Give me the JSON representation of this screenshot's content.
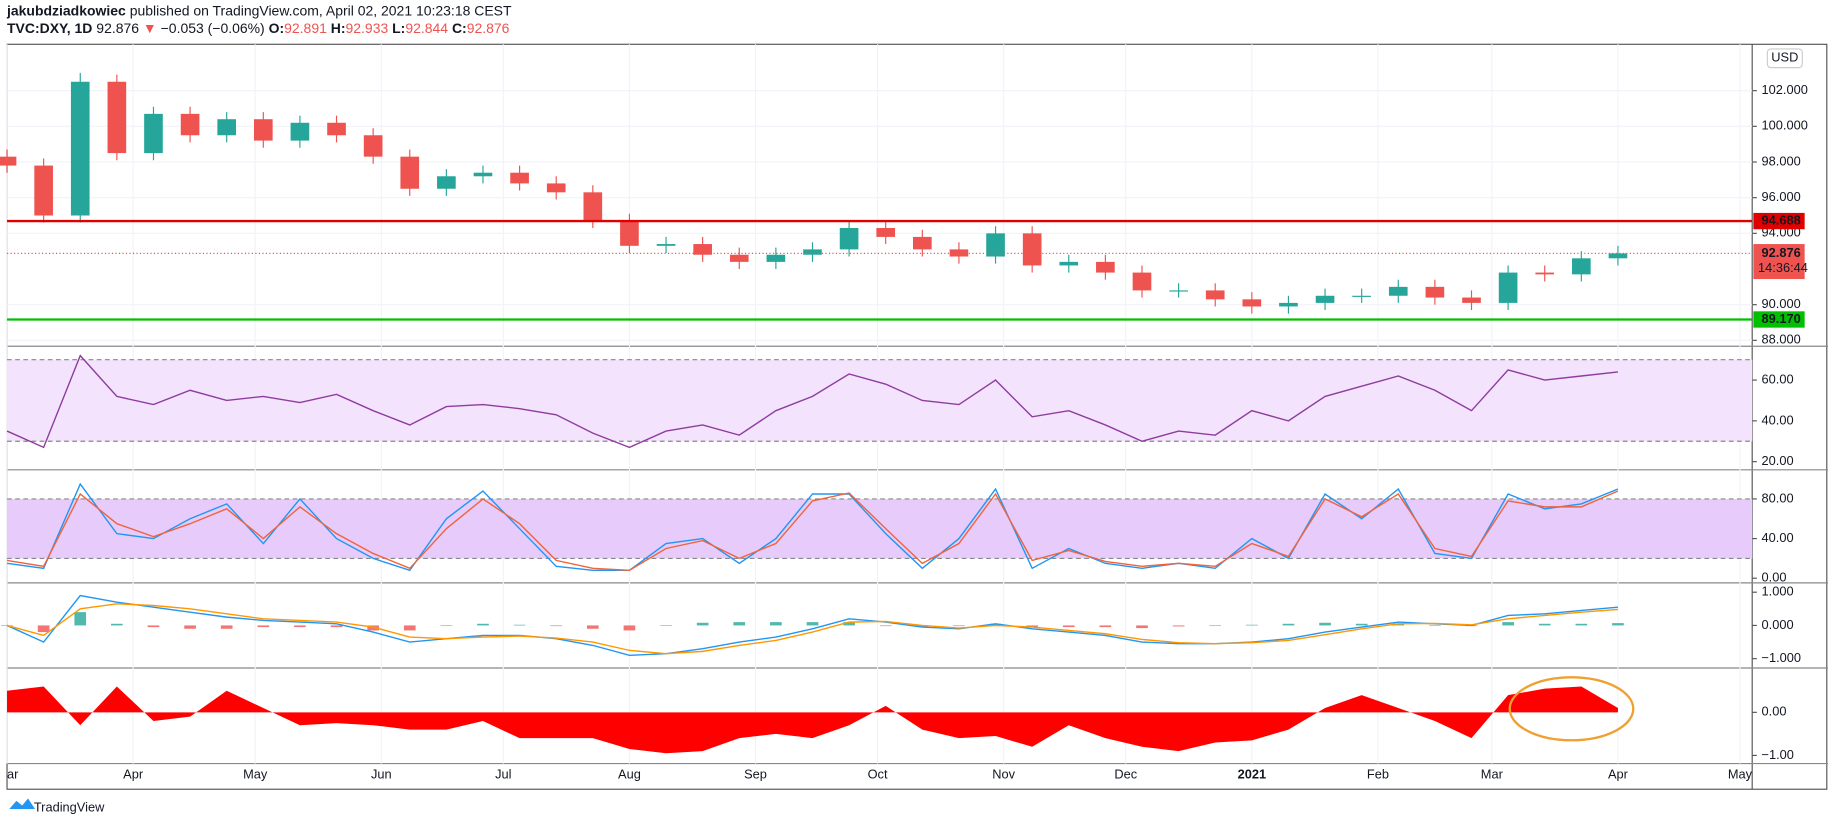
{
  "header": {
    "author": "jakubdziadkowiec",
    "published": "published on TradingView.com, April 02, 2021 10:23:18 CEST",
    "symbol": "TVC:DXY, 1D",
    "last": 92.876,
    "arrow": "▼",
    "change": "−0.053 (−0.06%)",
    "ohlc": [
      {
        "key": "O:",
        "value": 92.891
      },
      {
        "key": "H:",
        "value": 92.933
      },
      {
        "key": "L:",
        "value": 92.844
      },
      {
        "key": "C:",
        "value": 92.876
      }
    ],
    "currency": "USD"
  },
  "footer": {
    "logo": "TradingView"
  },
  "chart_data": {
    "type": "candlestick",
    "grid": true,
    "up_color": "#26a69a",
    "down_color": "#ef5350",
    "x": [
      0,
      9,
      18,
      27,
      36,
      45,
      54,
      63,
      72,
      81,
      90,
      99,
      108,
      117,
      126,
      135,
      144,
      153,
      162,
      171,
      180,
      189,
      198,
      207,
      216,
      225,
      234,
      243,
      252,
      261,
      270,
      279,
      288,
      297,
      306,
      315,
      324,
      333,
      342,
      351,
      360,
      369,
      378,
      387,
      396
    ],
    "xlim": [
      0,
      429
    ],
    "xticks": [
      {
        "value": 0,
        "label": "ar"
      },
      {
        "value": 31,
        "label": "Apr"
      },
      {
        "value": 61,
        "label": "May"
      },
      {
        "value": 92,
        "label": "Jun"
      },
      {
        "value": 122,
        "label": "Jul"
      },
      {
        "value": 153,
        "label": "Aug"
      },
      {
        "value": 184,
        "label": "Sep"
      },
      {
        "value": 214,
        "label": "Oct"
      },
      {
        "value": 245,
        "label": "Nov"
      },
      {
        "value": 275,
        "label": "Dec"
      },
      {
        "value": 306,
        "label": "2021"
      },
      {
        "value": 337,
        "label": "Feb"
      },
      {
        "value": 365,
        "label": "Mar"
      },
      {
        "value": 396,
        "label": "Apr"
      },
      {
        "value": 426,
        "label": "May"
      }
    ],
    "open": [
      98.3,
      97.8,
      95.0,
      102.5,
      98.5,
      100.7,
      99.5,
      100.4,
      99.2,
      100.2,
      99.5,
      98.3,
      96.5,
      97.2,
      97.4,
      96.8,
      96.3,
      94.7,
      93.3,
      93.4,
      92.8,
      92.4,
      92.8,
      93.1,
      94.3,
      93.8,
      93.1,
      92.7,
      94.0,
      92.2,
      92.4,
      91.8,
      90.8,
      90.8,
      90.3,
      89.9,
      90.1,
      90.5,
      90.5,
      91.0,
      90.4,
      90.1,
      91.8,
      91.7,
      92.6
    ],
    "high": [
      98.7,
      98.2,
      103.0,
      102.9,
      101.1,
      101.1,
      100.8,
      100.8,
      100.6,
      100.6,
      99.9,
      98.7,
      97.6,
      97.8,
      97.8,
      97.2,
      96.7,
      95.1,
      93.8,
      93.8,
      93.2,
      93.2,
      93.5,
      94.7,
      94.7,
      94.2,
      93.5,
      94.4,
      94.4,
      92.8,
      92.8,
      92.2,
      91.2,
      91.2,
      90.7,
      90.5,
      90.9,
      90.9,
      91.4,
      91.4,
      90.8,
      92.2,
      92.2,
      93.0,
      93.3
    ],
    "low": [
      97.4,
      94.6,
      94.6,
      98.1,
      98.1,
      99.1,
      99.1,
      98.8,
      98.8,
      99.1,
      97.9,
      96.1,
      96.1,
      96.8,
      96.4,
      95.9,
      94.3,
      92.9,
      92.9,
      92.4,
      92.0,
      92.0,
      92.4,
      92.7,
      93.4,
      92.7,
      92.3,
      92.3,
      91.8,
      91.8,
      91.4,
      90.4,
      90.4,
      89.9,
      89.5,
      89.5,
      89.7,
      90.1,
      90.1,
      90.0,
      89.7,
      89.7,
      91.3,
      91.3,
      92.2
    ],
    "close": [
      97.8,
      95.0,
      102.5,
      98.5,
      100.7,
      99.5,
      100.4,
      99.2,
      100.2,
      99.5,
      98.3,
      96.5,
      97.2,
      97.4,
      96.8,
      96.3,
      94.7,
      93.3,
      93.4,
      92.8,
      92.4,
      92.8,
      93.1,
      94.3,
      93.8,
      93.1,
      92.7,
      94.0,
      92.2,
      92.4,
      91.8,
      90.8,
      90.8,
      90.3,
      89.9,
      90.1,
      90.5,
      90.5,
      91.0,
      90.4,
      90.1,
      91.8,
      91.7,
      92.6,
      92.876
    ],
    "ylim": [
      87.67,
      104.6
    ],
    "yticks": [
      {
        "value": 88,
        "label": "88.000"
      },
      {
        "value": 90,
        "label": "90.000"
      },
      {
        "value": 94,
        "label": "94.000"
      },
      {
        "value": 96,
        "label": "96.000"
      },
      {
        "value": 98,
        "label": "98.000"
      },
      {
        "value": 100,
        "label": "100.000"
      },
      {
        "value": 102,
        "label": "102.000"
      }
    ],
    "levels": [
      {
        "value": 94.688,
        "color": "#e00000"
      },
      {
        "value": 89.17,
        "label": "89.170",
        "color": "#00c000"
      }
    ],
    "last_price": {
      "value": 92.876,
      "countdown": "14:36:44",
      "color": "#ef5350"
    },
    "panels": [
      {
        "type": "line",
        "ylim": [
          16,
          76.6
        ],
        "yticks": [
          {
            "value": 20,
            "label": "20.00"
          },
          {
            "value": 40,
            "label": "40.00"
          },
          {
            "value": 60,
            "label": "60.00"
          }
        ],
        "band": [
          30,
          70
        ],
        "band_color": "#f3e3fd",
        "series": [
          {
            "color": "#8e3c9e",
            "values": [
              35,
              27,
              72,
              52,
              48,
              55,
              50,
              52,
              49,
              53,
              45,
              38,
              47,
              48,
              46,
              43,
              34,
              27,
              35,
              38,
              33,
              45,
              52,
              63,
              58,
              50,
              48,
              60,
              42,
              45,
              38,
              30,
              35,
              33,
              45,
              40,
              52,
              57,
              62,
              55,
              45,
              65,
              60,
              62,
              64
            ]
          }
        ]
      },
      {
        "type": "line",
        "ylim": [
          -4.7,
          109.4
        ],
        "yticks": [
          {
            "value": 0,
            "label": "0.00"
          },
          {
            "value": 40,
            "label": "40.00"
          },
          {
            "value": 80,
            "label": "80.00"
          }
        ],
        "band": [
          20,
          80
        ],
        "band_color": "#e6cbfb",
        "series": [
          {
            "color": "#2196f3",
            "values": [
              15,
              10,
              95,
              45,
              40,
              60,
              75,
              35,
              80,
              40,
              20,
              8,
              60,
              88,
              50,
              12,
              8,
              8,
              35,
              40,
              15,
              40,
              85,
              85,
              45,
              10,
              40,
              90,
              10,
              30,
              15,
              10,
              15,
              10,
              40,
              20,
              85,
              60,
              90,
              25,
              20,
              85,
              70,
              75,
              90
            ]
          },
          {
            "color": "#f0643c",
            "values": [
              18,
              12,
              85,
              55,
              42,
              55,
              70,
              40,
              72,
              45,
              25,
              10,
              50,
              80,
              55,
              18,
              10,
              8,
              30,
              38,
              20,
              35,
              78,
              86,
              50,
              15,
              35,
              85,
              18,
              28,
              17,
              12,
              15,
              12,
              35,
              22,
              80,
              62,
              85,
              30,
              22,
              78,
              72,
              72,
              88
            ]
          }
        ]
      },
      {
        "type": "bar-line",
        "ylim": [
          -1.28,
          1.28
        ],
        "yticks": [
          {
            "value": -1,
            "label": "−1.000"
          },
          {
            "value": 0,
            "label": "0.000"
          },
          {
            "value": 1,
            "label": "1.000"
          }
        ],
        "bars": {
          "up_color": "#26a69a",
          "down_color": "#ef5350",
          "values": [
            0,
            -0.2,
            0.4,
            0.05,
            -0.05,
            -0.1,
            -0.1,
            -0.05,
            -0.05,
            -0.05,
            -0.15,
            -0.15,
            0,
            0.05,
            0.02,
            -0.02,
            -0.1,
            -0.15,
            0,
            0.08,
            0.1,
            0.1,
            0.1,
            0.1,
            -0.02,
            -0.05,
            -0.02,
            0.05,
            -0.05,
            -0.05,
            -0.05,
            -0.08,
            -0.03,
            0,
            0.02,
            0.05,
            0.08,
            0.05,
            0.05,
            -0.01,
            -0.02,
            0.1,
            0.05,
            0.05,
            0.07
          ]
        },
        "series": [
          {
            "color": "#2196f3",
            "values": [
              0,
              -0.5,
              0.9,
              0.7,
              0.55,
              0.4,
              0.25,
              0.15,
              0.1,
              0.05,
              -0.2,
              -0.5,
              -0.4,
              -0.3,
              -0.3,
              -0.4,
              -0.6,
              -0.9,
              -0.85,
              -0.7,
              -0.5,
              -0.35,
              -0.1,
              0.2,
              0.1,
              -0.05,
              -0.1,
              0.05,
              -0.1,
              -0.2,
              -0.3,
              -0.5,
              -0.55,
              -0.55,
              -0.5,
              -0.4,
              -0.2,
              -0.05,
              0.1,
              0.05,
              0,
              0.3,
              0.35,
              0.45,
              0.55
            ]
          },
          {
            "color": "#ff9800",
            "values": [
              0,
              -0.3,
              0.5,
              0.65,
              0.6,
              0.5,
              0.35,
              0.2,
              0.15,
              0.1,
              -0.05,
              -0.35,
              -0.4,
              -0.35,
              -0.32,
              -0.38,
              -0.5,
              -0.75,
              -0.85,
              -0.78,
              -0.6,
              -0.45,
              -0.2,
              0.1,
              0.12,
              0,
              -0.08,
              0,
              -0.05,
              -0.15,
              -0.25,
              -0.42,
              -0.52,
              -0.55,
              -0.52,
              -0.45,
              -0.28,
              -0.1,
              0.05,
              0.06,
              0.02,
              0.2,
              0.3,
              0.4,
              0.48
            ]
          }
        ]
      },
      {
        "type": "area",
        "ylim": [
          -1.19,
          1.03
        ],
        "color": "#ff0000",
        "yticks": [
          {
            "value": -1,
            "label": "−1.00"
          },
          {
            "value": 0,
            "label": "0.00"
          }
        ],
        "values": [
          0.5,
          0.6,
          -0.3,
          0.6,
          -0.2,
          -0.1,
          0.5,
          0.1,
          -0.3,
          -0.25,
          -0.3,
          -0.4,
          -0.4,
          -0.2,
          -0.6,
          -0.6,
          -0.6,
          -0.85,
          -0.95,
          -0.9,
          -0.6,
          -0.5,
          -0.6,
          -0.3,
          0.15,
          -0.4,
          -0.6,
          -0.55,
          -0.8,
          -0.3,
          -0.6,
          -0.8,
          -0.9,
          -0.7,
          -0.65,
          -0.4,
          0.1,
          0.4,
          0.1,
          -0.2,
          -0.6,
          0.4,
          0.55,
          0.6,
          0.1
        ]
      }
    ]
  }
}
